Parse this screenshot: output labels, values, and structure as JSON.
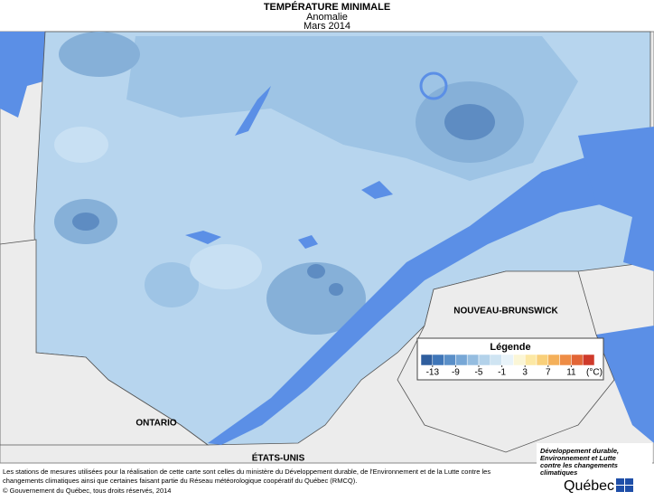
{
  "header": {
    "title": "TEMPÉRATURE MINIMALE",
    "subtitle": "Anomalie",
    "date": "Mars 2014"
  },
  "regions": {
    "new_brunswick": "NOUVEAU-BRUNSWICK",
    "ontario": "ONTARIO",
    "usa": "ÉTATS-UNIS"
  },
  "legend": {
    "title": "Légende",
    "ticks": [
      -13,
      -9,
      -5,
      -1,
      3,
      7,
      11
    ],
    "unit": "(°C)",
    "colors": [
      "#2f5e9e",
      "#3f76b8",
      "#5a8fc8",
      "#77a7d6",
      "#95bde0",
      "#b3d2ea",
      "#cfe4f2",
      "#e8f3f9",
      "#fbf6d6",
      "#fce8a4",
      "#f9d07a",
      "#f4b05a",
      "#ee8c45",
      "#e26536",
      "#cf3a2a"
    ]
  },
  "footer": {
    "notes": [
      "Les stations de mesures utilisées pour la réalisation de cette carte sont celles du ministère du Développement durable, de l'Environnement et de la Lutte contre les",
      "changements climatiques ainsi que certaines faisant partie du Réseau météorologique coopératif du Québec (RMCQ)."
    ],
    "copyright": "© Gouvernement du Québec, tous droits réservés, 2014"
  },
  "logo": {
    "ministry": [
      "Développement durable,",
      "Environnement et Lutte",
      "contre les changements",
      "climatiques"
    ],
    "name": "Québec"
  }
}
